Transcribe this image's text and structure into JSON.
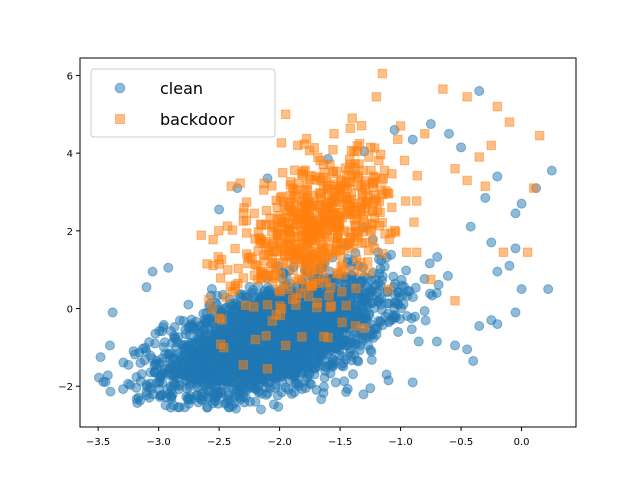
{
  "chart_data": {
    "type": "scatter",
    "title": "",
    "xlabel": "",
    "ylabel": "",
    "xlim": [
      -3.65,
      0.45
    ],
    "ylim": [
      -3.05,
      6.45
    ],
    "xticks": [
      -3.5,
      -3.0,
      -2.5,
      -2.0,
      -1.5,
      -1.0,
      -0.5,
      0.0
    ],
    "xtick_labels": [
      "−3.5",
      "−3.0",
      "−2.5",
      "−2.0",
      "−1.5",
      "−1.0",
      "−0.5",
      "0.0"
    ],
    "yticks": [
      -2,
      0,
      2,
      4,
      6
    ],
    "ytick_labels": [
      "−2",
      "0",
      "2",
      "4",
      "6"
    ],
    "grid": false,
    "legend_position": "top-left",
    "series": [
      {
        "name": "clean",
        "marker": "circle",
        "color": "#1f77b4",
        "alpha": 0.5,
        "cluster": {
          "center_x": -2.05,
          "center_y": -0.75,
          "sd_x": 0.45,
          "sd_y": 0.75,
          "corr": 0.55,
          "count": 3000,
          "x_range": [
            -3.5,
            0.25
          ],
          "y_range": [
            -2.6,
            5.7
          ]
        },
        "points": [
          [
            -3.48,
            -1.25
          ],
          [
            -3.42,
            -1.72
          ],
          [
            -3.38,
            -0.1
          ],
          [
            -3.25,
            -1.45
          ],
          [
            -3.15,
            -1.4
          ],
          [
            -3.1,
            0.55
          ],
          [
            -3.05,
            0.95
          ],
          [
            -2.92,
            1.05
          ],
          [
            -2.9,
            -2.55
          ],
          [
            -2.75,
            -2.45
          ],
          [
            -2.6,
            -2.55
          ],
          [
            -2.45,
            -2.45
          ],
          [
            -2.2,
            -2.4
          ],
          [
            -1.9,
            -2.2
          ],
          [
            -1.45,
            -2.15
          ],
          [
            -1.25,
            -2.05
          ],
          [
            -1.1,
            -1.85
          ],
          [
            -0.9,
            -1.9
          ],
          [
            -0.85,
            -0.85
          ],
          [
            -0.7,
            -0.85
          ],
          [
            -0.55,
            -0.95
          ],
          [
            -0.45,
            -1.05
          ],
          [
            -0.4,
            -1.35
          ],
          [
            -0.35,
            -0.45
          ],
          [
            -0.25,
            -0.3
          ],
          [
            -0.2,
            -0.4
          ],
          [
            -0.05,
            -0.1
          ],
          [
            0.0,
            0.5
          ],
          [
            0.22,
            0.5
          ],
          [
            -0.1,
            1.1
          ],
          [
            -0.25,
            1.7
          ],
          [
            -0.05,
            1.55
          ],
          [
            -0.2,
            0.95
          ],
          [
            -0.05,
            2.45
          ],
          [
            0.0,
            2.7
          ],
          [
            0.12,
            3.1
          ],
          [
            0.25,
            3.55
          ],
          [
            -0.2,
            3.4
          ],
          [
            -0.3,
            2.85
          ],
          [
            -0.35,
            5.6
          ],
          [
            -0.5,
            4.15
          ],
          [
            -0.6,
            4.5
          ],
          [
            -0.75,
            4.75
          ],
          [
            -0.9,
            4.35
          ],
          [
            -1.05,
            4.6
          ],
          [
            -1.3,
            4.05
          ],
          [
            -1.6,
            3.85
          ],
          [
            -2.35,
            3.1
          ],
          [
            -2.5,
            2.55
          ],
          [
            -2.1,
            3.35
          ]
        ]
      },
      {
        "name": "backdoor",
        "marker": "square",
        "color": "#ff7f0e",
        "alpha": 0.5,
        "cluster": {
          "center_x": -1.7,
          "center_y": 2.1,
          "sd_x": 0.32,
          "sd_y": 0.95,
          "corr": 0.45,
          "count": 600,
          "x_range": [
            -2.7,
            0.2
          ],
          "y_range": [
            -1.6,
            6.1
          ]
        },
        "points": [
          [
            -1.15,
            6.05
          ],
          [
            -0.65,
            5.65
          ],
          [
            -0.45,
            5.45
          ],
          [
            -0.2,
            5.2
          ],
          [
            -0.1,
            4.8
          ],
          [
            0.15,
            4.45
          ],
          [
            -1.2,
            5.45
          ],
          [
            -1.95,
            5.0
          ],
          [
            -1.85,
            4.2
          ],
          [
            -1.55,
            4.5
          ],
          [
            -1.4,
            4.9
          ],
          [
            -1.0,
            4.7
          ],
          [
            -0.8,
            4.5
          ],
          [
            -0.25,
            4.2
          ],
          [
            -0.35,
            3.9
          ],
          [
            -0.55,
            3.6
          ],
          [
            -0.45,
            3.3
          ],
          [
            -0.3,
            3.15
          ],
          [
            0.1,
            3.1
          ],
          [
            0.05,
            1.45
          ],
          [
            -0.15,
            1.45
          ],
          [
            -0.55,
            0.2
          ],
          [
            -0.75,
            0.75
          ],
          [
            -0.95,
            1.45
          ],
          [
            -2.4,
            3.15
          ],
          [
            -2.6,
            1.15
          ],
          [
            -2.3,
            2.25
          ],
          [
            -2.5,
            -0.25
          ],
          [
            -2.2,
            -0.8
          ],
          [
            -2.3,
            -1.45
          ],
          [
            -2.1,
            -1.55
          ],
          [
            -1.95,
            -0.95
          ],
          [
            -1.6,
            -0.75
          ],
          [
            -1.3,
            -0.5
          ],
          [
            -1.1,
            0.5
          ]
        ]
      }
    ]
  },
  "legend": {
    "items": [
      {
        "label": "clean",
        "color": "#1f77b4",
        "marker": "circle"
      },
      {
        "label": "backdoor",
        "color": "#ff7f0e",
        "marker": "square"
      }
    ]
  }
}
